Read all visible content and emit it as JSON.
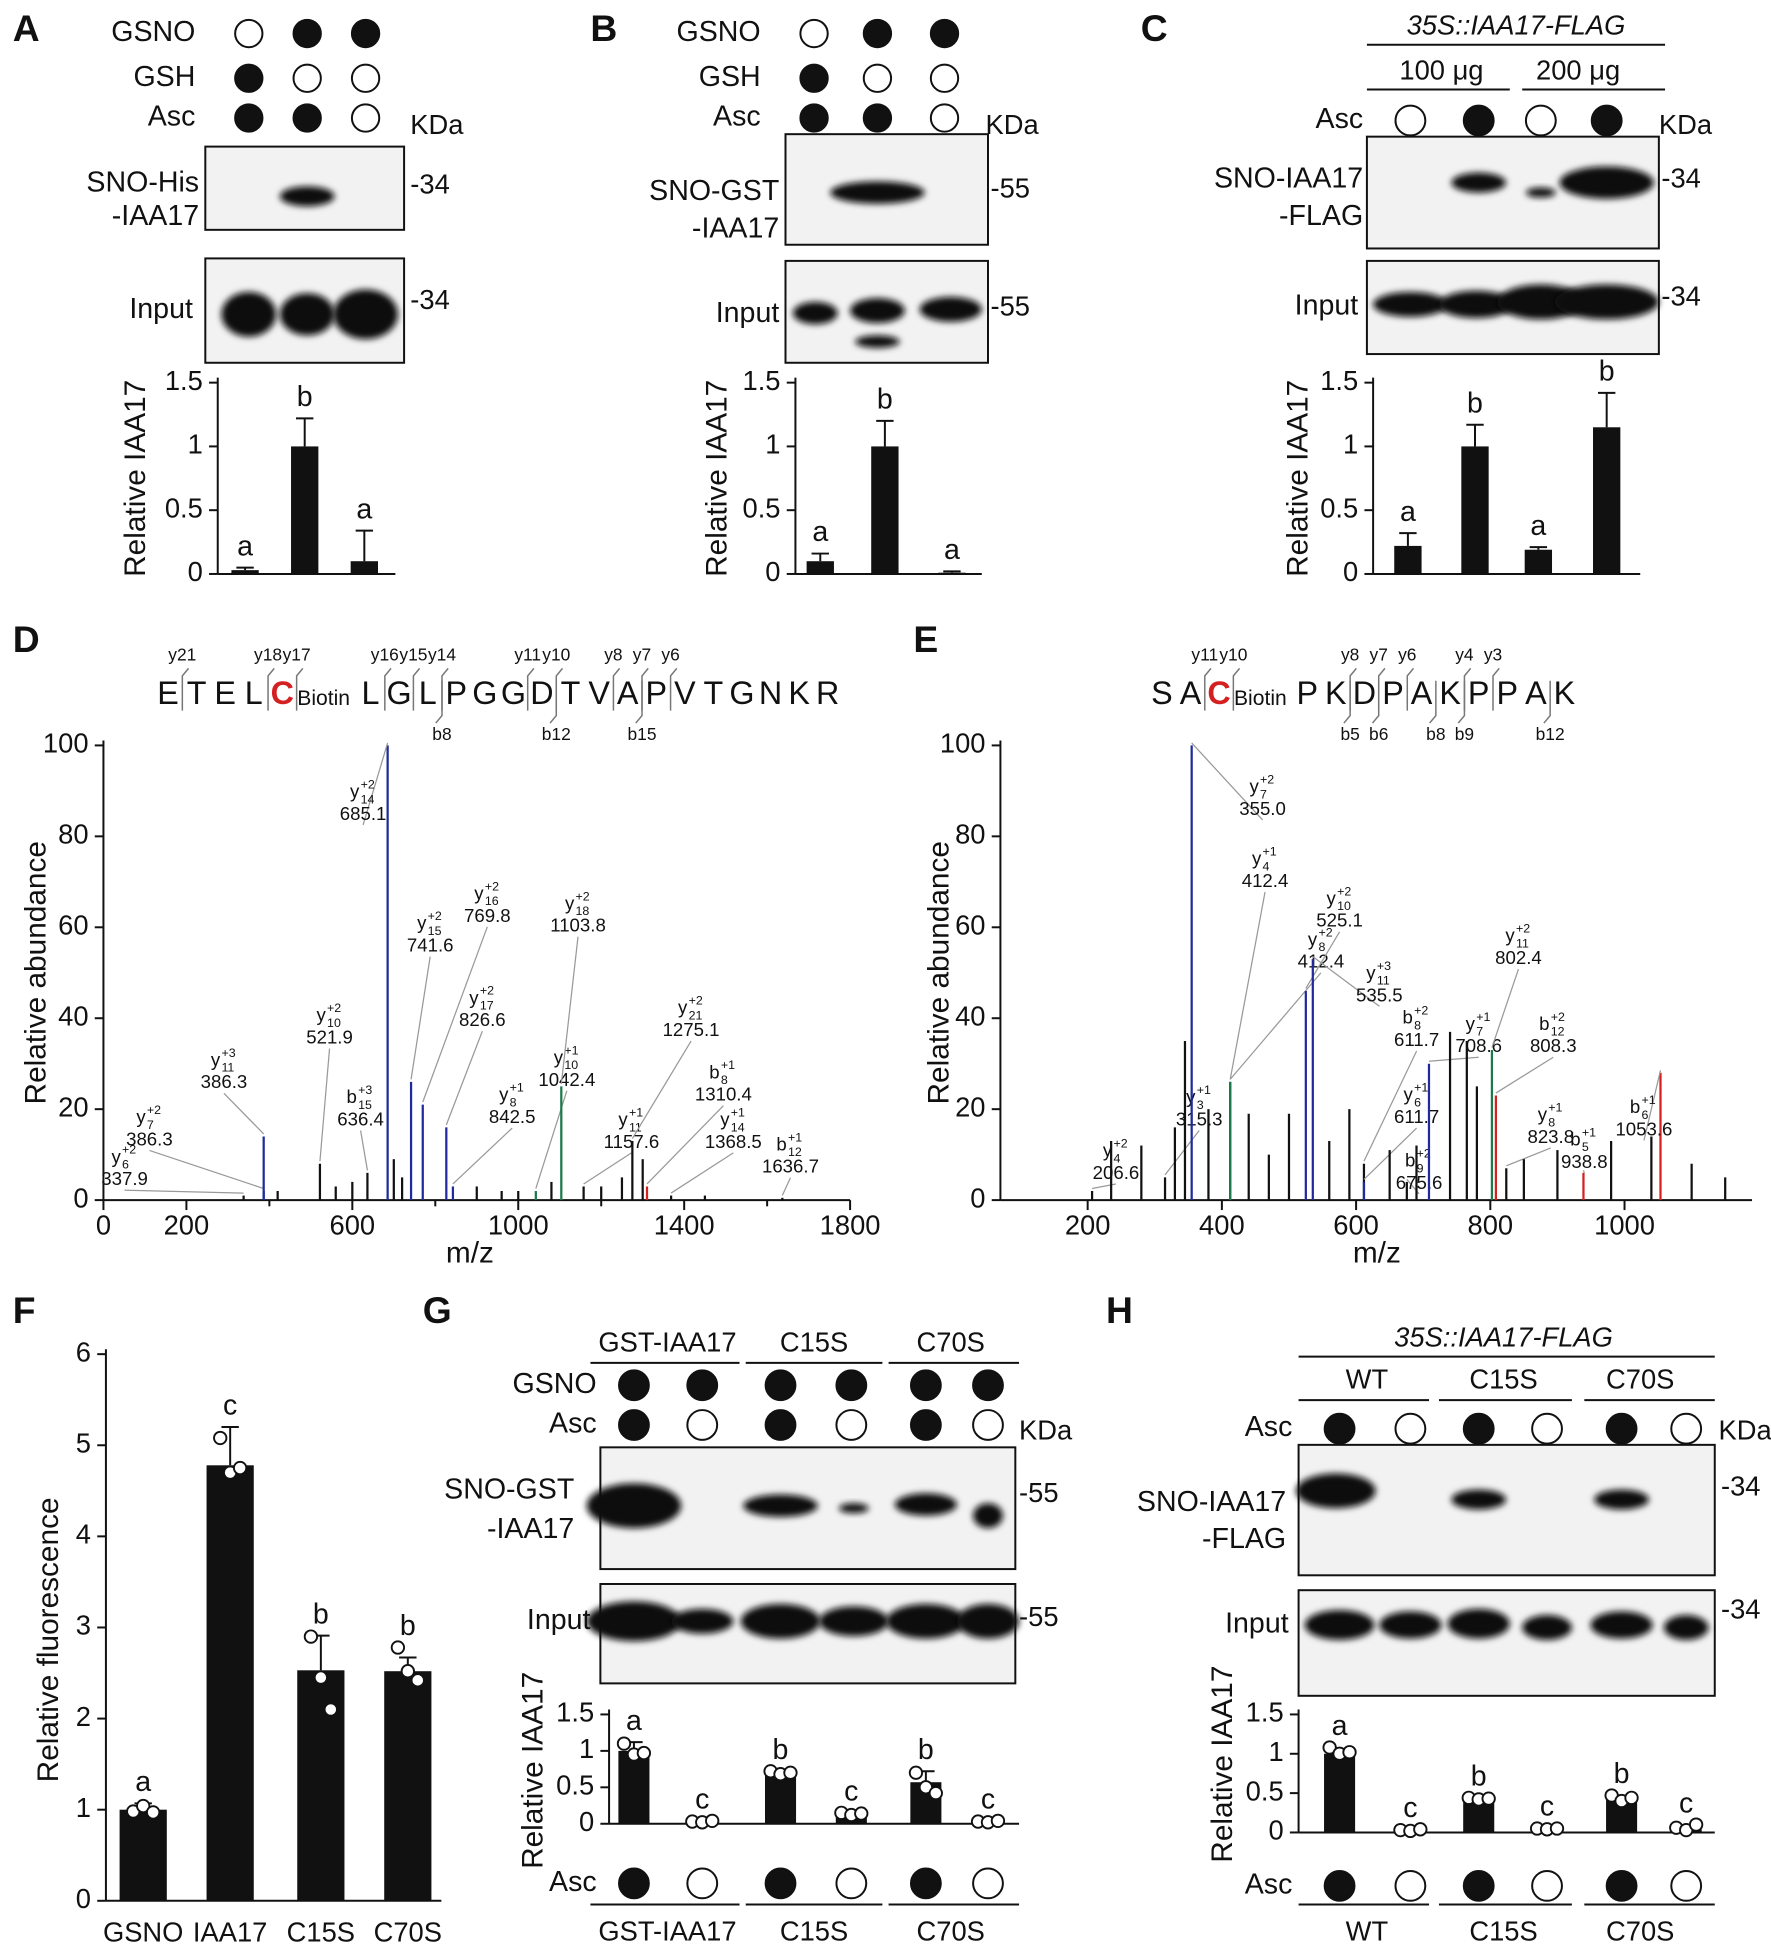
{
  "panel_labels": [
    "A",
    "B",
    "C",
    "D",
    "E",
    "F",
    "G",
    "H"
  ],
  "blot_panels": [
    {
      "treatments": [
        {
          "name": "GSNO",
          "present": [
            false,
            true,
            true
          ]
        },
        {
          "name": "GSH",
          "present": [
            true,
            false,
            false
          ]
        },
        {
          "name": "Asc",
          "present": [
            true,
            true,
            false
          ]
        }
      ],
      "unit": "KDa",
      "blots": [
        {
          "lines": [
            "SNO-His",
            "-IAA17"
          ],
          "marker": "-34"
        },
        {
          "lines": [
            "Input"
          ],
          "marker": "-34"
        }
      ]
    },
    {
      "treatments": [
        {
          "name": "GSNO",
          "present": [
            false,
            true,
            true
          ]
        },
        {
          "name": "GSH",
          "present": [
            true,
            false,
            false
          ]
        },
        {
          "name": "Asc",
          "present": [
            true,
            true,
            false
          ]
        }
      ],
      "unit": "KDa",
      "blots": [
        {
          "lines": [
            "SNO-GST",
            "-IAA17"
          ],
          "marker": "-55"
        },
        {
          "lines": [
            "Input"
          ],
          "marker": "-55"
        }
      ]
    },
    {
      "header": "35S::IAA17-FLAG",
      "groups": [
        "100 μg",
        "200 μg"
      ],
      "treatments": [
        {
          "name": "Asc",
          "present": [
            false,
            true,
            false,
            true
          ]
        }
      ],
      "unit": "KDa",
      "blots": [
        {
          "lines": [
            "SNO-IAA17",
            "-FLAG"
          ],
          "marker": "-34"
        },
        {
          "lines": [
            "Input"
          ],
          "marker": "-34"
        }
      ]
    },
    {
      "groups": [
        "GST-IAA17",
        "C15S",
        "C70S"
      ],
      "treatments": [
        {
          "name": "GSNO",
          "present": [
            true,
            true,
            true,
            true,
            true,
            true
          ]
        },
        {
          "name": "Asc",
          "present": [
            true,
            false,
            true,
            false,
            true,
            false
          ]
        }
      ],
      "unit": "KDa",
      "blots": [
        {
          "lines": [
            "SNO-GST",
            "-IAA17"
          ],
          "marker": "-55"
        },
        {
          "lines": [
            "Input"
          ],
          "marker": "-55"
        }
      ],
      "bottom_treatment": {
        "name": "Asc",
        "present": [
          true,
          false,
          true,
          false,
          true,
          false
        ]
      },
      "bottom_groups": [
        "GST-IAA17",
        "C15S",
        "C70S"
      ]
    },
    {
      "header": "35S::IAA17-FLAG",
      "groups": [
        "WT",
        "C15S",
        "C70S"
      ],
      "treatments": [
        {
          "name": "Asc",
          "present": [
            true,
            false,
            true,
            false,
            true,
            false
          ]
        }
      ],
      "unit": "KDa",
      "blots": [
        {
          "lines": [
            "SNO-IAA17",
            "-FLAG"
          ],
          "marker": "-34"
        },
        {
          "lines": [
            "Input"
          ],
          "marker": "-34"
        }
      ],
      "bottom_treatment": {
        "name": "Asc",
        "present": [
          true,
          false,
          true,
          false,
          true,
          false
        ]
      },
      "bottom_groups": [
        "WT",
        "C15S",
        "C70S"
      ]
    }
  ],
  "chart_data": [
    {
      "type": "bar",
      "ylabel": "Relative IAA17",
      "values": [
        0.03,
        1,
        0.1
      ],
      "errors": [
        0.02,
        0.22,
        0.24
      ],
      "letters": [
        "a",
        "b",
        "a"
      ],
      "ylim": [
        0,
        1.5
      ],
      "yticks": [
        0,
        0.5,
        1,
        1.5
      ],
      "color": "#111111"
    },
    {
      "type": "bar",
      "ylabel": "Relative IAA17",
      "values": [
        0.1,
        1,
        0.01
      ],
      "errors": [
        0.06,
        0.2,
        0.01
      ],
      "letters": [
        "a",
        "b",
        "a"
      ],
      "ylim": [
        0,
        1.5
      ],
      "yticks": [
        0,
        0.5,
        1,
        1.5
      ],
      "color": "#111111"
    },
    {
      "type": "bar",
      "ylabel": "Relative IAA17",
      "values": [
        0.22,
        1,
        0.19,
        1.15
      ],
      "errors": [
        0.1,
        0.17,
        0.02,
        0.27
      ],
      "letters": [
        "a",
        "b",
        "a",
        "b"
      ],
      "ylim": [
        0,
        1.5
      ],
      "yticks": [
        0,
        0.5,
        1,
        1.5
      ],
      "color": "#111111"
    },
    {
      "type": "spectrum",
      "sequence": [
        "E",
        "T",
        "E",
        "L",
        {
          "residue": "C",
          "modification": "Biotin"
        },
        "L",
        "G",
        "L",
        "P",
        "G",
        "G",
        "D",
        "T",
        "V",
        "A",
        "P",
        "V",
        "T",
        "G",
        "N",
        "K",
        "R"
      ],
      "y_ions": [
        "y21",
        "y18",
        "y17",
        "y16",
        "y15",
        "y14",
        "y11",
        "y10",
        "y8",
        "y7",
        "y6"
      ],
      "b_ions": [
        "b8",
        "b12",
        "b15"
      ],
      "xlabel": "m/z",
      "ylabel": "Relative abundance",
      "xlim": [
        0,
        1800
      ],
      "xticks": [
        0,
        200,
        600,
        1000,
        1400,
        1800
      ],
      "xminor_ticks": [
        400,
        800,
        1200,
        1600
      ],
      "ylim": [
        0,
        100
      ],
      "yticks": [
        0,
        20,
        40,
        60,
        80,
        100
      ],
      "x": [
        337.9,
        386.3,
        386.3,
        521.9,
        636.4,
        685.1,
        741.6,
        769.8,
        826.6,
        842.5,
        1042.4,
        1103.8,
        1157.6,
        1275.1,
        1310.4,
        1368.5,
        1636.7,
        420,
        560,
        600,
        700,
        720,
        900,
        960,
        1000,
        1080,
        1200,
        1250,
        1300,
        1450
      ],
      "values": [
        1,
        2,
        14,
        8,
        6,
        100,
        26,
        21,
        16,
        3,
        2,
        25,
        3,
        13,
        3,
        1,
        0.5,
        2,
        3,
        4,
        9,
        5,
        3,
        2,
        2,
        4,
        3,
        5,
        9,
        1
      ],
      "colors": [
        "#111111",
        "#1f2a9c",
        "#1f2a9c",
        "#111111",
        "#111111",
        "#1f2a9c",
        "#1f2a9c",
        "#1f2a9c",
        "#1f2a9c",
        "#1f2a9c",
        "#1a7a4a",
        "#1a7a4a",
        "#111111",
        "#111111",
        "#d42020",
        "#111111",
        "#111111",
        "#111111",
        "#111111",
        "#111111",
        "#111111",
        "#111111",
        "#111111",
        "#111111",
        "#111111",
        "#111111",
        "#111111",
        "#111111",
        "#111111",
        "#111111"
      ],
      "ion_labels": [
        {
          "ion": "y",
          "sup": "+2",
          "sub": "6"
        },
        {
          "ion": "y",
          "sup": "+2",
          "sub": "7"
        },
        {
          "ion": "y",
          "sup": "+3",
          "sub": "11"
        },
        {
          "ion": "y",
          "sup": "+2",
          "sub": "10"
        },
        {
          "ion": "b",
          "sup": "+3",
          "sub": "15"
        },
        {
          "ion": "y",
          "sup": "+2",
          "sub": "14"
        },
        {
          "ion": "y",
          "sup": "+2",
          "sub": "15"
        },
        {
          "ion": "y",
          "sup": "+2",
          "sub": "16"
        },
        {
          "ion": "y",
          "sup": "+2",
          "sub": "17"
        },
        {
          "ion": "y",
          "sup": "+1",
          "sub": "8"
        },
        {
          "ion": "y",
          "sup": "+1",
          "sub": "10"
        },
        {
          "ion": "y",
          "sup": "+2",
          "sub": "18"
        },
        {
          "ion": "y",
          "sup": "+1",
          "sub": "11"
        },
        {
          "ion": "y",
          "sup": "+2",
          "sub": "21"
        },
        {
          "ion": "b",
          "sup": "+1",
          "sub": "8"
        },
        {
          "ion": "y",
          "sup": "+1",
          "sub": "14"
        },
        {
          "ion": "b",
          "sup": "+1",
          "sub": "12"
        },
        null,
        null,
        null,
        null,
        null,
        null,
        null,
        null,
        null,
        null,
        null,
        null,
        null
      ],
      "x_labels": [
        "337.9",
        "386.3",
        "386.3",
        "521.9",
        "636.4",
        "685.1",
        "741.6",
        "769.8",
        "826.6",
        "842.5",
        "1042.4",
        "1103.8",
        "1157.6",
        "1275.1",
        "1310.4",
        "1368.5",
        "1636.7",
        null,
        null,
        null,
        null,
        null,
        null,
        null,
        null,
        null,
        null,
        null,
        null,
        null
      ]
    },
    {
      "type": "spectrum",
      "sequence": [
        "S",
        "A",
        {
          "residue": "C",
          "modification": "Biotin"
        },
        "P",
        "K",
        "D",
        "P",
        "A",
        "K",
        "P",
        "P",
        "A",
        "K"
      ],
      "y_ions": [
        "y11",
        "y10",
        "y8",
        "y7",
        "y6",
        "y4",
        "y3"
      ],
      "b_ions": [
        "b5",
        "b6",
        "b8",
        "b9",
        "b12"
      ],
      "xlabel": "m/z",
      "ylabel": "Relative abundance",
      "xlim": [
        70,
        1190
      ],
      "xticks": [
        200,
        400,
        600,
        800,
        1000
      ],
      "ylim": [
        0,
        100
      ],
      "yticks": [
        0,
        20,
        40,
        60,
        80,
        100
      ],
      "x": [
        206.6,
        315.3,
        355.0,
        412.4,
        412.4,
        525.1,
        535.5,
        611.7,
        611.7,
        675.6,
        708.6,
        802.4,
        808.3,
        823.8,
        938.8,
        1053.6,
        235,
        280,
        330,
        345,
        380,
        440,
        470,
        500,
        560,
        590,
        650,
        690,
        740,
        765,
        780,
        850,
        900,
        980,
        1040,
        1100,
        1150
      ],
      "values": [
        2,
        5,
        100,
        26,
        26,
        46,
        53,
        8,
        4,
        4,
        30,
        33,
        23,
        7,
        6,
        28,
        13,
        12,
        16,
        35,
        20,
        19,
        10,
        19,
        13,
        20,
        11,
        12,
        37,
        35,
        25,
        9,
        11,
        13,
        14,
        8,
        5
      ],
      "colors": [
        "#111111",
        "#111111",
        "#1f2a9c",
        "#1f2a9c",
        "#1a7a4a",
        "#1f2a9c",
        "#1f2a9c",
        "#111111",
        "#1f2a9c",
        "#111111",
        "#1f2a9c",
        "#1a7a4a",
        "#d42020",
        "#111111",
        "#d42020",
        "#d42020",
        "#111111",
        "#111111",
        "#111111",
        "#111111",
        "#111111",
        "#111111",
        "#111111",
        "#111111",
        "#111111",
        "#111111",
        "#111111",
        "#111111",
        "#111111",
        "#111111",
        "#111111",
        "#111111",
        "#111111",
        "#111111",
        "#111111",
        "#111111",
        "#111111"
      ],
      "ion_labels": [
        {
          "ion": "y",
          "sup": "+2",
          "sub": "4"
        },
        {
          "ion": "y",
          "sup": "+1",
          "sub": "3"
        },
        {
          "ion": "y",
          "sup": "+2",
          "sub": "7"
        },
        {
          "ion": "y",
          "sup": "+1",
          "sub": "4"
        },
        {
          "ion": "y",
          "sup": "+2",
          "sub": "8"
        },
        {
          "ion": "y",
          "sup": "+2",
          "sub": "10"
        },
        {
          "ion": "y",
          "sup": "+3",
          "sub": "11"
        },
        {
          "ion": "b",
          "sup": "+2",
          "sub": "8"
        },
        {
          "ion": "y",
          "sup": "+1",
          "sub": "6"
        },
        {
          "ion": "b",
          "sup": "+2",
          "sub": "9"
        },
        {
          "ion": "y",
          "sup": "+1",
          "sub": "7"
        },
        {
          "ion": "y",
          "sup": "+2",
          "sub": "11"
        },
        {
          "ion": "b",
          "sup": "+2",
          "sub": "12"
        },
        {
          "ion": "y",
          "sup": "+1",
          "sub": "8"
        },
        {
          "ion": "b",
          "sup": "+1",
          "sub": "5"
        },
        {
          "ion": "b",
          "sup": "+1",
          "sub": "6"
        },
        null,
        null,
        null,
        null,
        null,
        null,
        null,
        null,
        null,
        null,
        null,
        null,
        null,
        null,
        null,
        null,
        null,
        null,
        null,
        null,
        null
      ],
      "x_labels": [
        "206.6",
        "315.3",
        "355.0",
        "412.4",
        "412.4",
        "525.1",
        "535.5",
        "611.7",
        "611.7",
        "675.6",
        "708.6",
        "802.4",
        "808.3",
        "823.8",
        "938.8",
        "1053.6",
        null,
        null,
        null,
        null,
        null,
        null,
        null,
        null,
        null,
        null,
        null,
        null,
        null,
        null,
        null,
        null,
        null,
        null,
        null,
        null,
        null
      ]
    },
    {
      "type": "bar",
      "ylabel": "Relative fluorescence",
      "categories": [
        "GSNO",
        "IAA17",
        "C15S",
        "C70S"
      ],
      "values": [
        1,
        4.78,
        2.53,
        2.52
      ],
      "errors": [
        0.07,
        0.42,
        0.38,
        0.15
      ],
      "points": [
        [
          0.98,
          1.04,
          0.97
        ],
        [
          5.08,
          4.7,
          4.75
        ],
        [
          2.9,
          2.45,
          2.1
        ],
        [
          2.78,
          2.52,
          2.42
        ]
      ],
      "letters": [
        "a",
        "c",
        "b",
        "b"
      ],
      "ylim": [
        0,
        6
      ],
      "yticks": [
        0,
        1,
        2,
        3,
        4,
        5,
        6
      ],
      "color": "#111111"
    },
    {
      "type": "bar",
      "ylabel": "Relative IAA17",
      "values": [
        1,
        0.03,
        0.69,
        0.13,
        0.57,
        0.02
      ],
      "errors": [
        0.12,
        0.01,
        0.03,
        0.02,
        0.15,
        0.01
      ],
      "points": [
        [
          1.1,
          0.95,
          0.97
        ],
        [
          0.03,
          0.02,
          0.04
        ],
        [
          0.72,
          0.68,
          0.7
        ],
        [
          0.15,
          0.12,
          0.14
        ],
        [
          0.7,
          0.5,
          0.42
        ],
        [
          0.03,
          0.02,
          0.04
        ]
      ],
      "letters": [
        "a",
        "c",
        "b",
        "c",
        "b",
        "c"
      ],
      "ylim": [
        0,
        1.5
      ],
      "yticks": [
        0,
        0.5,
        1,
        1.5
      ],
      "color": "#111111"
    },
    {
      "type": "bar",
      "ylabel": "Relative IAA17",
      "values": [
        1,
        0.02,
        0.42,
        0.04,
        0.42,
        0.04
      ],
      "errors": [
        0.02,
        0.01,
        0.02,
        0.02,
        0.05,
        0.02
      ],
      "points": [
        [
          1.08,
          1,
          1.02
        ],
        [
          0.03,
          0.02,
          0.04
        ],
        [
          0.44,
          0.42,
          0.43
        ],
        [
          0.05,
          0.04,
          0.05
        ],
        [
          0.47,
          0.4,
          0.44
        ],
        [
          0.06,
          0.03,
          0.1
        ]
      ],
      "letters": [
        "a",
        "c",
        "b",
        "c",
        "b",
        "c"
      ],
      "ylim": [
        0,
        1.5
      ],
      "yticks": [
        0,
        0.5,
        1,
        1.5
      ],
      "color": "#111111"
    }
  ]
}
